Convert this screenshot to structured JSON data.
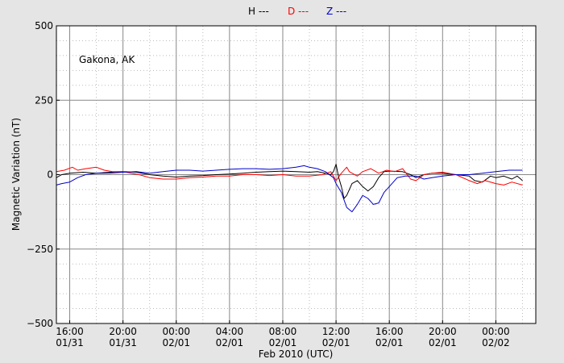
{
  "chart_data": {
    "type": "line",
    "title": "",
    "xlabel": "Feb 2010 (UTC)",
    "ylabel": "Magnetic Variation (nT)",
    "annotation": "Gakona, AK",
    "ylim": [
      -500,
      500
    ],
    "y_ticks": [
      {
        "value": 500,
        "label": "500"
      },
      {
        "value": 250,
        "label": "250"
      },
      {
        "value": 0,
        "label": "0"
      },
      {
        "value": -250,
        "label": "−250"
      },
      {
        "value": -500,
        "label": "−500"
      }
    ],
    "xlim_hours": [
      15.5,
      33.5
    ],
    "x_ticks": [
      {
        "hour": 16,
        "time": "16:00",
        "date": "01/31"
      },
      {
        "hour": 18,
        "time": "20:00",
        "date": "01/31"
      },
      {
        "hour": 20,
        "time": "00:00",
        "date": "02/01"
      },
      {
        "hour": 22,
        "time": "04:00",
        "date": "02/01"
      },
      {
        "hour": 24,
        "time": "08:00",
        "date": "02/01"
      },
      {
        "hour": 26,
        "time": "12:00",
        "date": "02/01"
      },
      {
        "hour": 28,
        "time": "16:00",
        "date": "02/01"
      },
      {
        "hour": 30,
        "time": "20:00",
        "date": "02/01"
      },
      {
        "hour": 32,
        "time": "00:00",
        "date": "02/02"
      }
    ],
    "grid": true,
    "legend_position": "top-center",
    "series": [
      {
        "name": "H ---",
        "color": "#000000",
        "points": [
          [
            15.5,
            -10
          ],
          [
            15.7,
            0
          ],
          [
            16.0,
            5
          ],
          [
            16.5,
            8
          ],
          [
            17.0,
            5
          ],
          [
            17.5,
            8
          ],
          [
            18.0,
            10
          ],
          [
            18.5,
            8
          ],
          [
            19.0,
            0
          ],
          [
            19.5,
            -5
          ],
          [
            20.0,
            -8
          ],
          [
            20.5,
            -5
          ],
          [
            21.0,
            -3
          ],
          [
            21.5,
            0
          ],
          [
            22.0,
            2
          ],
          [
            22.5,
            5
          ],
          [
            23.0,
            8
          ],
          [
            23.5,
            10
          ],
          [
            24.0,
            12
          ],
          [
            24.5,
            10
          ],
          [
            25.0,
            8
          ],
          [
            25.3,
            10
          ],
          [
            25.6,
            5
          ],
          [
            25.8,
            0
          ],
          [
            25.9,
            10
          ],
          [
            26.0,
            35
          ],
          [
            26.1,
            -10
          ],
          [
            26.2,
            -40
          ],
          [
            26.3,
            -80
          ],
          [
            26.4,
            -70
          ],
          [
            26.6,
            -30
          ],
          [
            26.8,
            -20
          ],
          [
            27.0,
            -40
          ],
          [
            27.2,
            -55
          ],
          [
            27.4,
            -40
          ],
          [
            27.6,
            -10
          ],
          [
            27.8,
            10
          ],
          [
            28.0,
            12
          ],
          [
            28.5,
            10
          ],
          [
            28.8,
            0
          ],
          [
            29.0,
            -10
          ],
          [
            29.3,
            0
          ],
          [
            29.6,
            5
          ],
          [
            30.0,
            5
          ],
          [
            30.5,
            0
          ],
          [
            31.0,
            -5
          ],
          [
            31.2,
            -20
          ],
          [
            31.5,
            -25
          ],
          [
            31.8,
            -5
          ],
          [
            32.0,
            -10
          ],
          [
            32.3,
            -5
          ],
          [
            32.6,
            -15
          ],
          [
            32.8,
            -5
          ],
          [
            33.0,
            -20
          ]
        ]
      },
      {
        "name": "D ---",
        "color": "#ff0000",
        "points": [
          [
            15.5,
            10
          ],
          [
            15.8,
            15
          ],
          [
            16.1,
            25
          ],
          [
            16.3,
            15
          ],
          [
            16.6,
            20
          ],
          [
            17.0,
            25
          ],
          [
            17.3,
            15
          ],
          [
            17.6,
            10
          ],
          [
            18.0,
            10
          ],
          [
            18.3,
            5
          ],
          [
            18.6,
            0
          ],
          [
            19.0,
            -10
          ],
          [
            19.5,
            -15
          ],
          [
            20.0,
            -15
          ],
          [
            20.5,
            -10
          ],
          [
            21.0,
            -8
          ],
          [
            21.5,
            -5
          ],
          [
            22.0,
            -5
          ],
          [
            22.5,
            0
          ],
          [
            23.0,
            0
          ],
          [
            23.5,
            -3
          ],
          [
            24.0,
            0
          ],
          [
            24.5,
            -5
          ],
          [
            25.0,
            -5
          ],
          [
            25.5,
            0
          ],
          [
            25.8,
            10
          ],
          [
            26.0,
            -20
          ],
          [
            26.2,
            5
          ],
          [
            26.4,
            25
          ],
          [
            26.5,
            10
          ],
          [
            26.8,
            -5
          ],
          [
            27.0,
            10
          ],
          [
            27.3,
            20
          ],
          [
            27.6,
            5
          ],
          [
            27.9,
            15
          ],
          [
            28.2,
            10
          ],
          [
            28.5,
            20
          ],
          [
            28.8,
            -15
          ],
          [
            29.0,
            -20
          ],
          [
            29.3,
            0
          ],
          [
            29.6,
            5
          ],
          [
            30.0,
            8
          ],
          [
            30.5,
            0
          ],
          [
            31.0,
            -20
          ],
          [
            31.3,
            -30
          ],
          [
            31.6,
            -20
          ],
          [
            32.0,
            -30
          ],
          [
            32.3,
            -35
          ],
          [
            32.6,
            -25
          ],
          [
            33.0,
            -35
          ]
        ]
      },
      {
        "name": "Z ---",
        "color": "#0000cc",
        "points": [
          [
            15.5,
            -35
          ],
          [
            15.7,
            -30
          ],
          [
            16.0,
            -25
          ],
          [
            16.3,
            -10
          ],
          [
            16.6,
            0
          ],
          [
            17.0,
            5
          ],
          [
            17.5,
            5
          ],
          [
            18.0,
            8
          ],
          [
            18.5,
            10
          ],
          [
            19.0,
            5
          ],
          [
            19.5,
            10
          ],
          [
            20.0,
            15
          ],
          [
            20.5,
            15
          ],
          [
            21.0,
            12
          ],
          [
            21.5,
            15
          ],
          [
            22.0,
            18
          ],
          [
            22.5,
            20
          ],
          [
            23.0,
            20
          ],
          [
            23.5,
            18
          ],
          [
            24.0,
            20
          ],
          [
            24.5,
            25
          ],
          [
            24.8,
            30
          ],
          [
            25.0,
            25
          ],
          [
            25.3,
            20
          ],
          [
            25.6,
            10
          ],
          [
            25.9,
            -10
          ],
          [
            26.0,
            -30
          ],
          [
            26.2,
            -60
          ],
          [
            26.4,
            -110
          ],
          [
            26.6,
            -125
          ],
          [
            26.8,
            -100
          ],
          [
            27.0,
            -70
          ],
          [
            27.2,
            -80
          ],
          [
            27.4,
            -100
          ],
          [
            27.6,
            -95
          ],
          [
            27.8,
            -60
          ],
          [
            28.0,
            -40
          ],
          [
            28.3,
            -10
          ],
          [
            28.6,
            -5
          ],
          [
            29.0,
            -5
          ],
          [
            29.3,
            -15
          ],
          [
            29.6,
            -10
          ],
          [
            30.0,
            -5
          ],
          [
            30.5,
            0
          ],
          [
            31.0,
            0
          ],
          [
            31.5,
            5
          ],
          [
            32.0,
            10
          ],
          [
            32.5,
            15
          ],
          [
            33.0,
            15
          ]
        ]
      }
    ]
  }
}
